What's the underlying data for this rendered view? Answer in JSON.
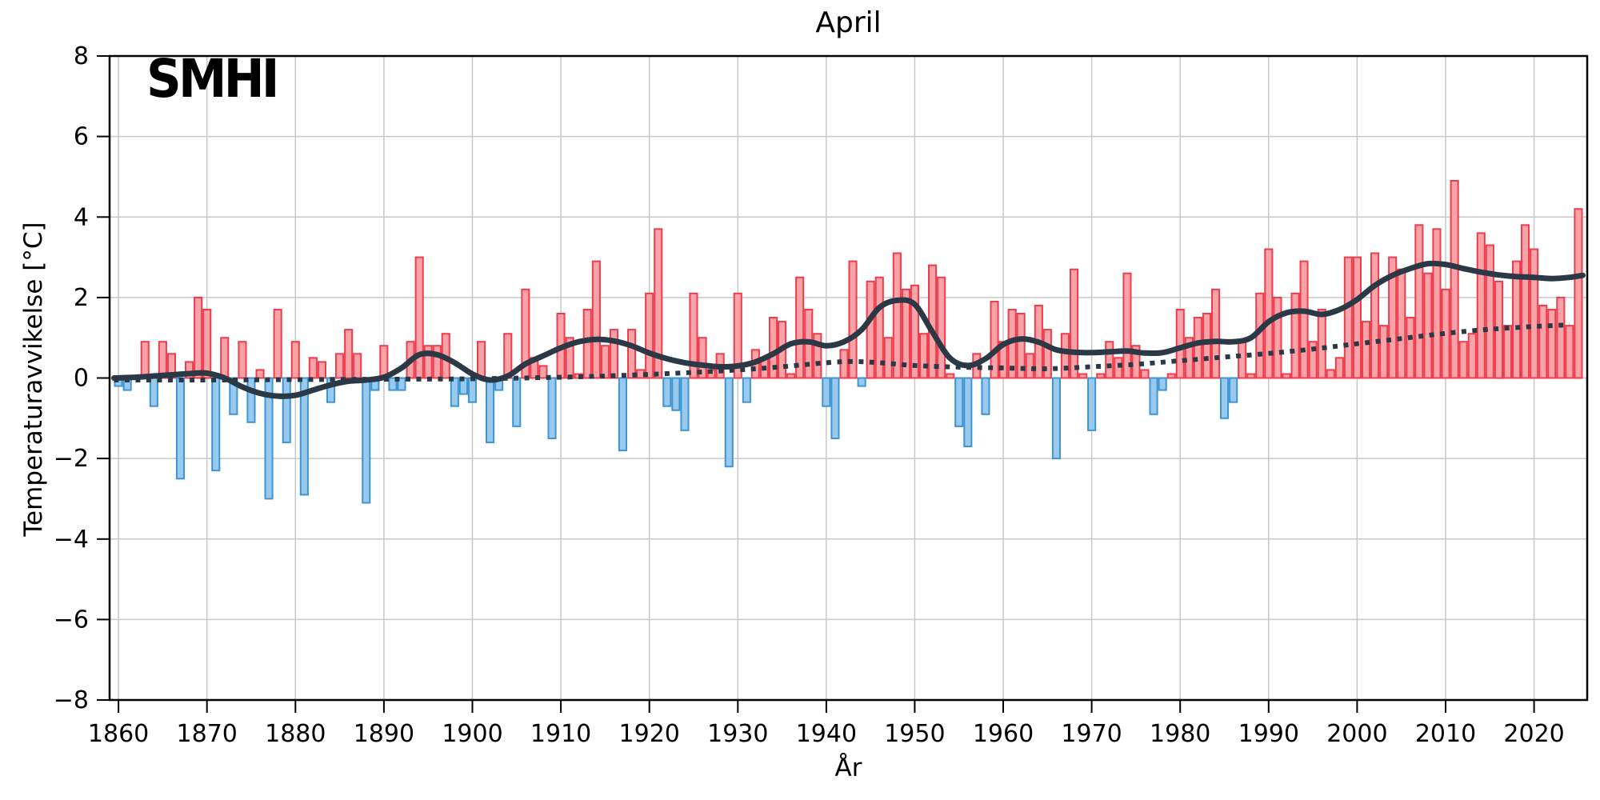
{
  "header": {
    "title": "April",
    "logo_text": "SMHI"
  },
  "chart_data": {
    "type": "bar",
    "title": "April",
    "xlabel": "År",
    "ylabel": "Temperaturavvikelse [°C]",
    "xlim": [
      1859,
      2026
    ],
    "ylim": [
      -8,
      8
    ],
    "grid": true,
    "legend_position": "none",
    "xticks": [
      1860,
      1870,
      1880,
      1890,
      1900,
      1910,
      1920,
      1930,
      1940,
      1950,
      1960,
      1970,
      1980,
      1990,
      2000,
      2010,
      2020
    ],
    "yticks": [
      {
        "v": 8,
        "label": "8"
      },
      {
        "v": 6,
        "label": "6"
      },
      {
        "v": 4,
        "label": "4"
      },
      {
        "v": 2,
        "label": "2"
      },
      {
        "v": 0,
        "label": "0"
      },
      {
        "v": -2,
        "label": "−2"
      },
      {
        "v": -4,
        "label": "−4"
      },
      {
        "v": -6,
        "label": "−6"
      },
      {
        "v": -8,
        "label": "−8"
      }
    ],
    "bar_width_years": 0.82,
    "colors": {
      "bar_positive_fill": "#f9a2a7",
      "bar_positive_edge": "#ee3d4c",
      "bar_negative_fill": "#99c9ec",
      "bar_negative_edge": "#3e95d6",
      "smooth_line": "#2b3947",
      "trend_line": "#2b3947",
      "grid": "#c8c8c8",
      "spine": "#000000",
      "background": "#ffffff"
    },
    "categories": [
      1860,
      1861,
      1862,
      1863,
      1864,
      1865,
      1866,
      1867,
      1868,
      1869,
      1870,
      1871,
      1872,
      1873,
      1874,
      1875,
      1876,
      1877,
      1878,
      1879,
      1880,
      1881,
      1882,
      1883,
      1884,
      1885,
      1886,
      1887,
      1888,
      1889,
      1890,
      1891,
      1892,
      1893,
      1894,
      1895,
      1896,
      1897,
      1898,
      1899,
      1900,
      1901,
      1902,
      1903,
      1904,
      1905,
      1906,
      1907,
      1908,
      1909,
      1910,
      1911,
      1912,
      1913,
      1914,
      1915,
      1916,
      1917,
      1918,
      1919,
      1920,
      1921,
      1922,
      1923,
      1924,
      1925,
      1926,
      1927,
      1928,
      1929,
      1930,
      1931,
      1932,
      1933,
      1934,
      1935,
      1936,
      1937,
      1938,
      1939,
      1940,
      1941,
      1942,
      1943,
      1944,
      1945,
      1946,
      1947,
      1948,
      1949,
      1950,
      1951,
      1952,
      1953,
      1954,
      1955,
      1956,
      1957,
      1958,
      1959,
      1960,
      1961,
      1962,
      1963,
      1964,
      1965,
      1966,
      1967,
      1968,
      1969,
      1970,
      1971,
      1972,
      1973,
      1974,
      1975,
      1976,
      1977,
      1978,
      1979,
      1980,
      1981,
      1982,
      1983,
      1984,
      1985,
      1986,
      1987,
      1988,
      1989,
      1990,
      1991,
      1992,
      1993,
      1994,
      1995,
      1996,
      1997,
      1998,
      1999,
      2000,
      2001,
      2002,
      2003,
      2004,
      2005,
      2006,
      2007,
      2008,
      2009,
      2010,
      2011,
      2012,
      2013,
      2014,
      2015,
      2016,
      2017,
      2018,
      2019,
      2020,
      2021,
      2022,
      2023,
      2024,
      2025
    ],
    "values": [
      -0.2,
      -0.3,
      0.0,
      0.9,
      -0.7,
      0.9,
      0.6,
      -2.5,
      0.4,
      2.0,
      1.7,
      -2.3,
      1.0,
      -0.9,
      0.9,
      -1.1,
      0.2,
      -3.0,
      1.7,
      -1.6,
      0.9,
      -2.9,
      0.5,
      0.4,
      -0.6,
      0.6,
      1.2,
      0.6,
      -3.1,
      -0.3,
      0.8,
      -0.3,
      -0.3,
      0.9,
      3.0,
      0.8,
      0.8,
      1.1,
      -0.7,
      -0.4,
      -0.6,
      0.9,
      -1.6,
      -0.3,
      1.1,
      -1.2,
      2.2,
      0.5,
      0.3,
      -1.5,
      1.6,
      1.0,
      0.1,
      1.7,
      2.9,
      0.8,
      1.2,
      -1.8,
      1.2,
      0.2,
      2.1,
      3.7,
      -0.7,
      -0.8,
      -1.3,
      2.1,
      1.0,
      0.2,
      0.6,
      -2.2,
      2.1,
      -0.6,
      0.7,
      0.5,
      1.5,
      1.4,
      0.1,
      2.5,
      1.7,
      1.1,
      -0.7,
      -1.5,
      0.7,
      2.9,
      -0.2,
      2.4,
      2.5,
      1.0,
      3.1,
      2.2,
      2.3,
      1.1,
      2.8,
      2.5,
      0.1,
      -1.2,
      -1.7,
      0.6,
      -0.9,
      1.9,
      0.9,
      1.7,
      1.6,
      0.6,
      1.8,
      1.2,
      -2.0,
      1.1,
      2.7,
      0.1,
      -1.3,
      0.1,
      0.9,
      0.5,
      2.6,
      0.8,
      0.2,
      -0.9,
      -0.3,
      0.1,
      1.7,
      1.0,
      1.5,
      1.6,
      2.2,
      -1.0,
      -0.6,
      0.9,
      0.1,
      2.1,
      3.2,
      2.0,
      0.1,
      2.1,
      2.9,
      0.9,
      1.7,
      0.2,
      0.5,
      3.0,
      3.0,
      1.4,
      3.1,
      1.3,
      3.0,
      2.7,
      1.5,
      3.8,
      2.6,
      3.7,
      2.2,
      4.9,
      0.9,
      1.1,
      3.6,
      3.3,
      2.4,
      1.3,
      2.9,
      3.8,
      3.2,
      1.8,
      1.7,
      2.0,
      1.3,
      4.2
    ],
    "series": [
      {
        "name": "smoothed-curve",
        "type": "line",
        "style": "solid",
        "x": [
          1859.5,
          1862,
          1864,
          1866,
          1868,
          1870,
          1872,
          1874,
          1876,
          1878,
          1880,
          1882,
          1884,
          1886,
          1888,
          1890,
          1892,
          1894,
          1896,
          1898,
          1900,
          1902,
          1904,
          1906,
          1908,
          1910,
          1912,
          1914,
          1916,
          1918,
          1920,
          1922,
          1924,
          1926,
          1928,
          1930,
          1932,
          1934,
          1936,
          1938,
          1940,
          1942,
          1944,
          1946,
          1948,
          1950,
          1952,
          1954,
          1956,
          1958,
          1960,
          1962,
          1964,
          1966,
          1968,
          1970,
          1972,
          1974,
          1976,
          1978,
          1980,
          1982,
          1984,
          1986,
          1988,
          1990,
          1992,
          1994,
          1996,
          1998,
          2000,
          2002,
          2004,
          2006,
          2008,
          2010,
          2012,
          2014,
          2016,
          2018,
          2020,
          2022,
          2024,
          2025.5
        ],
        "y": [
          0.0,
          0.02,
          0.05,
          0.08,
          0.11,
          0.12,
          0.0,
          -0.22,
          -0.38,
          -0.45,
          -0.43,
          -0.3,
          -0.17,
          -0.08,
          -0.05,
          0.02,
          0.25,
          0.58,
          0.58,
          0.38,
          0.1,
          -0.05,
          0.05,
          0.35,
          0.55,
          0.75,
          0.9,
          0.96,
          0.92,
          0.8,
          0.62,
          0.48,
          0.38,
          0.32,
          0.28,
          0.3,
          0.4,
          0.6,
          0.85,
          0.9,
          0.8,
          0.9,
          1.2,
          1.75,
          1.93,
          1.83,
          1.14,
          0.49,
          0.31,
          0.48,
          0.83,
          0.97,
          0.89,
          0.7,
          0.64,
          0.63,
          0.65,
          0.67,
          0.62,
          0.63,
          0.75,
          0.87,
          0.91,
          0.9,
          1.0,
          1.4,
          1.62,
          1.66,
          1.58,
          1.7,
          1.95,
          2.3,
          2.55,
          2.72,
          2.84,
          2.82,
          2.72,
          2.63,
          2.56,
          2.52,
          2.5,
          2.47,
          2.5,
          2.55
        ]
      },
      {
        "name": "trend-dotted",
        "type": "line",
        "style": "dotted",
        "x": [
          1859.5,
          1870,
          1880,
          1890,
          1900,
          1910,
          1915,
          1920,
          1925,
          1930,
          1935,
          1940,
          1943,
          1946,
          1950,
          1955,
          1960,
          1965,
          1970,
          1975,
          1980,
          1985,
          1990,
          1995,
          2000,
          2005,
          2010,
          2015,
          2020,
          2024
        ],
        "y": [
          -0.05,
          -0.05,
          -0.04,
          -0.03,
          -0.02,
          0.02,
          0.05,
          0.09,
          0.14,
          0.2,
          0.28,
          0.38,
          0.41,
          0.38,
          0.31,
          0.27,
          0.25,
          0.23,
          0.28,
          0.34,
          0.43,
          0.52,
          0.61,
          0.72,
          0.85,
          0.98,
          1.11,
          1.21,
          1.28,
          1.32
        ]
      }
    ]
  }
}
